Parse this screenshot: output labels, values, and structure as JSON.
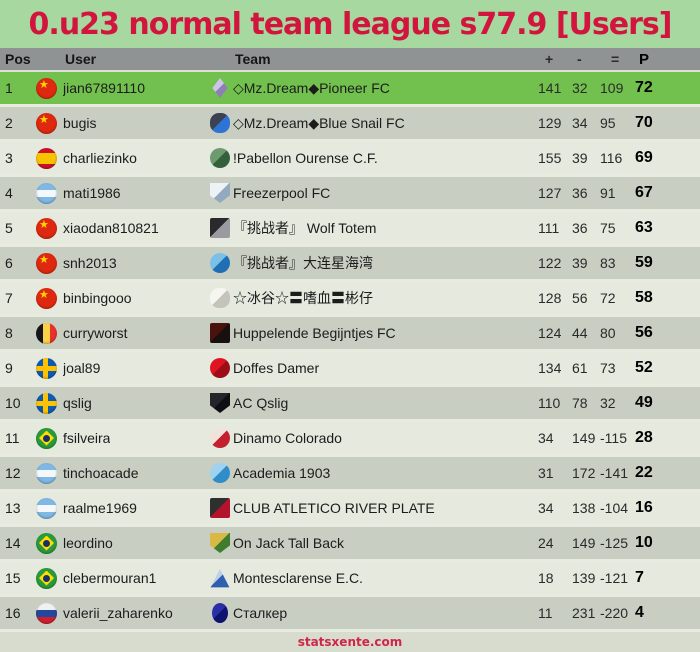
{
  "page": {
    "title": "0.u23 normal team league s77.9 [Users]",
    "footer_link": "statsxente.com"
  },
  "colors": {
    "page_background": "#a7d89f",
    "title_text": "#d2153e",
    "header_background": "#8f9393",
    "leader_row_background": "#72c14e",
    "row_gray": "#c9cec3",
    "row_light": "#e5e9de",
    "footer_background": "#d8dccf",
    "footer_link": "#cf2648"
  },
  "table": {
    "headers": {
      "pos": "Pos",
      "user": "User",
      "team": "Team",
      "plus": "+",
      "minus": "-",
      "eq": "=",
      "points": "P"
    },
    "rows": [
      {
        "pos": 1,
        "user": "jian67891110",
        "flag": "china",
        "team": "◇Mz.Dream◆Pioneer FC",
        "logo": {
          "shape": "diamond",
          "c1": "#cfc3e8",
          "c2": "#8f7fb8"
        },
        "plus": 141,
        "minus": 32,
        "eq": 109,
        "points": 72,
        "highlight": true
      },
      {
        "pos": 2,
        "user": "bugis",
        "flag": "china",
        "team": "◇Mz.Dream◆Blue Snail FC",
        "logo": {
          "shape": "blob",
          "c1": "#3b4252",
          "c2": "#2f74d4"
        },
        "plus": 129,
        "minus": 34,
        "eq": 95,
        "points": 70
      },
      {
        "pos": 3,
        "user": "charliezinko",
        "flag": "spain",
        "team": "!Pabellon Ourense C.F.",
        "logo": {
          "shape": "circle",
          "c1": "#6e9a70",
          "c2": "#35603c"
        },
        "plus": 155,
        "minus": 39,
        "eq": 116,
        "points": 69
      },
      {
        "pos": 4,
        "user": "mati1986",
        "flag": "argentina",
        "team": "Freezerpool FC",
        "logo": {
          "shape": "shield",
          "c1": "#eef2f6",
          "c2": "#93a9bf"
        },
        "plus": 127,
        "minus": 36,
        "eq": 91,
        "points": 67
      },
      {
        "pos": 5,
        "user": "xiaodan810821",
        "flag": "china",
        "team": "『挑战者』 Wolf Totem",
        "logo": {
          "shape": "square",
          "c1": "#2a2a2e",
          "c2": "#9a9aa0"
        },
        "plus": 111,
        "minus": 36,
        "eq": 75,
        "points": 63
      },
      {
        "pos": 6,
        "user": "snh2013",
        "flag": "china",
        "team": "『挑战者』大连星海湾",
        "logo": {
          "shape": "circle",
          "c1": "#7cc0e8",
          "c2": "#1f6fb4"
        },
        "plus": 122,
        "minus": 39,
        "eq": 83,
        "points": 59
      },
      {
        "pos": 7,
        "user": "binbingooo",
        "flag": "china",
        "team": "☆冰谷☆〓嗜血〓彬仔",
        "logo": {
          "shape": "blob",
          "c1": "#f6f6f1",
          "c2": "#c4c4ba"
        },
        "plus": 128,
        "minus": 56,
        "eq": 72,
        "points": 58
      },
      {
        "pos": 8,
        "user": "curryworst",
        "flag": "belgium",
        "team": "Huppelende Begijntjes FC",
        "logo": {
          "shape": "square",
          "c1": "#4a120c",
          "c2": "#17100f"
        },
        "plus": 124,
        "minus": 44,
        "eq": 80,
        "points": 56
      },
      {
        "pos": 9,
        "user": "joal89",
        "flag": "sweden",
        "team": "Doffes Damer",
        "logo": {
          "shape": "circle",
          "c1": "#e01323",
          "c2": "#9c0d16"
        },
        "plus": 134,
        "minus": 61,
        "eq": 73,
        "points": 52
      },
      {
        "pos": 10,
        "user": "qslig",
        "flag": "sweden",
        "team": "AC Qslig",
        "logo": {
          "shape": "shield",
          "c1": "#23252b",
          "c2": "#0e0f12"
        },
        "plus": 110,
        "minus": 78,
        "eq": 32,
        "points": 49
      },
      {
        "pos": 11,
        "user": "fsilveira",
        "flag": "brazil",
        "team": "Dinamo Colorado",
        "logo": {
          "shape": "circle",
          "c1": "#efe3da",
          "c2": "#c32030"
        },
        "plus": 34,
        "minus": 149,
        "eq": -115,
        "points": 28
      },
      {
        "pos": 12,
        "user": "tinchoacade",
        "flag": "argentina",
        "team": "Academia 1903",
        "logo": {
          "shape": "circle",
          "c1": "#9ed2ef",
          "c2": "#2f8ec9"
        },
        "plus": 31,
        "minus": 172,
        "eq": -141,
        "points": 22
      },
      {
        "pos": 13,
        "user": "raalme1969",
        "flag": "argentina",
        "team": "CLUB ATLETICO RIVER PLATE",
        "logo": {
          "shape": "square",
          "c1": "#2f2f2f",
          "c2": "#b5122e"
        },
        "plus": 34,
        "minus": 138,
        "eq": -104,
        "points": 16
      },
      {
        "pos": 14,
        "user": "leordino",
        "flag": "brazil",
        "team": "On Jack Tall Back",
        "logo": {
          "shape": "shield",
          "c1": "#d8b945",
          "c2": "#3f7c2e"
        },
        "plus": 24,
        "minus": 149,
        "eq": -125,
        "points": 10
      },
      {
        "pos": 15,
        "user": "clebermouran1",
        "flag": "brazil",
        "team": "Montesclarense E.C.",
        "logo": {
          "shape": "triangle",
          "c1": "#bcd0ea",
          "c2": "#2f5fae"
        },
        "plus": 18,
        "minus": 139,
        "eq": -121,
        "points": 7
      },
      {
        "pos": 16,
        "user": "valerii_zaharenko",
        "flag": "russia",
        "team": "Сталкер",
        "logo": {
          "shape": "oval",
          "c1": "#2a2fa6",
          "c2": "#0d1170"
        },
        "plus": 11,
        "minus": 231,
        "eq": -220,
        "points": 4
      }
    ]
  }
}
